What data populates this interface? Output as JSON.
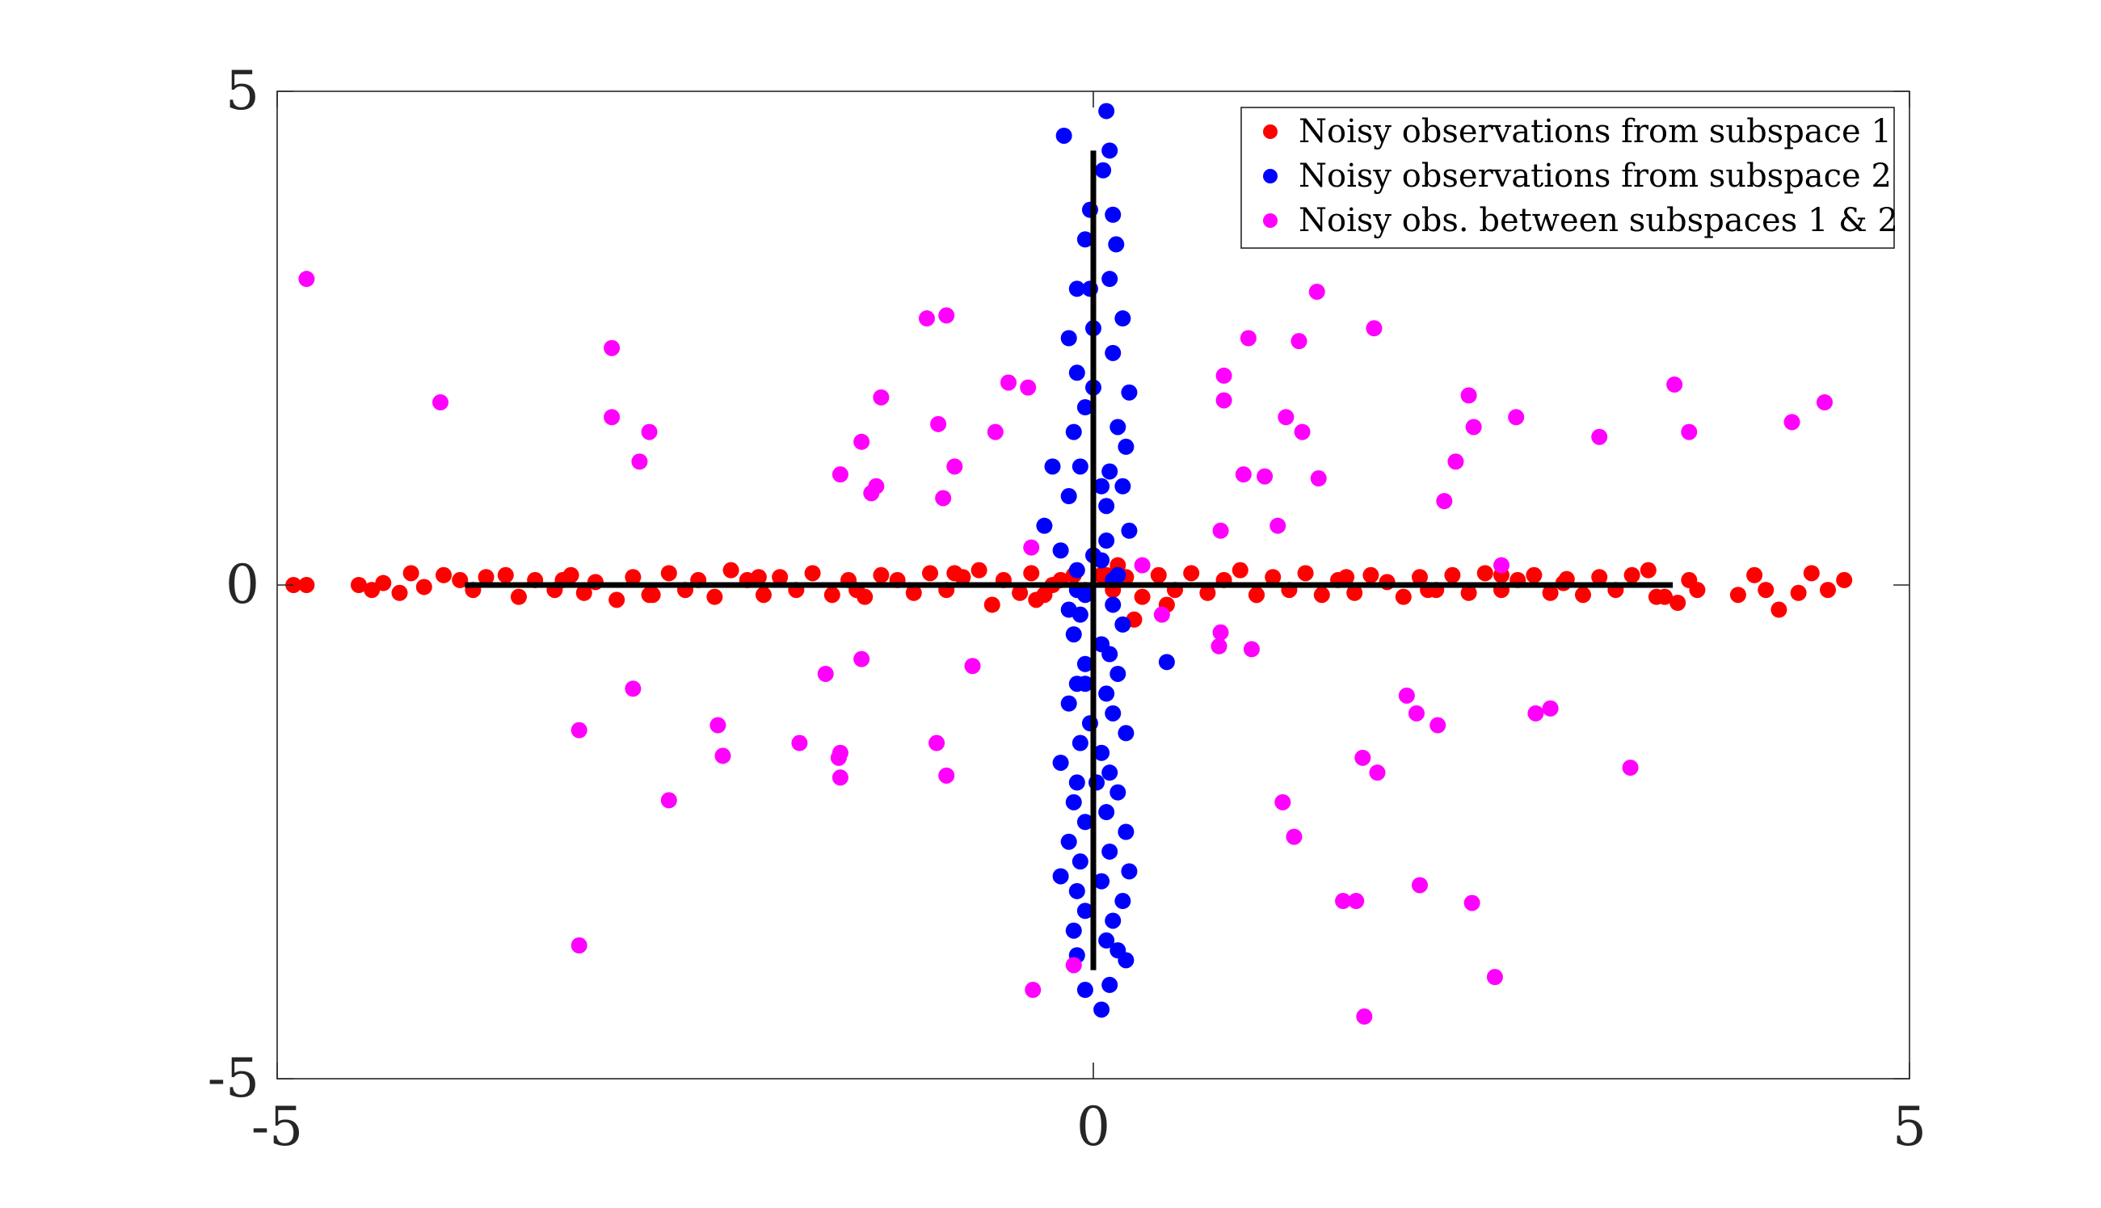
{
  "chart_data": {
    "type": "scatter",
    "title": "",
    "xlabel": "",
    "ylabel": "",
    "xlim": [
      -5,
      5
    ],
    "ylim": [
      -5,
      5
    ],
    "xticks": [
      -5,
      0,
      5
    ],
    "yticks": [
      -5,
      0,
      5
    ],
    "xtick_labels": [
      "-5",
      "0",
      "5"
    ],
    "ytick_labels": [
      "-5",
      "0",
      "5"
    ],
    "grid": false,
    "legend_position": "top-right",
    "colors": {
      "subspace1": "#ff0000",
      "subspace2": "#0000ff",
      "between": "#ff00ff",
      "lines": "#000000"
    },
    "lines": [
      {
        "x": [
          -3.85,
          3.55
        ],
        "y": [
          0,
          0
        ]
      },
      {
        "x": [
          0,
          0
        ],
        "y": [
          -3.9,
          4.4
        ]
      }
    ],
    "series": [
      {
        "name": "Noisy observations from subspace 1",
        "color": "#ff0000",
        "x": [
          -4.9,
          -4.82,
          -4.5,
          -4.42,
          -4.35,
          -4.25,
          -4.18,
          -4.1,
          -3.98,
          -3.88,
          -3.8,
          -3.72,
          -3.6,
          -3.52,
          -3.42,
          -3.3,
          -3.2,
          -3.12,
          -3.05,
          -2.92,
          -2.82,
          -2.72,
          -2.6,
          -2.5,
          -2.42,
          -2.32,
          -2.22,
          -2.12,
          -2.02,
          -1.92,
          -1.82,
          -1.72,
          -1.6,
          -1.5,
          -1.4,
          -1.3,
          -1.2,
          -1.1,
          -1.0,
          -0.9,
          -0.8,
          -0.7,
          -0.62,
          -0.55,
          -0.45,
          -0.38,
          -0.3,
          -0.2,
          -0.12,
          -0.05,
          0.05,
          0.12,
          0.2,
          0.3,
          0.4,
          0.5,
          0.6,
          0.7,
          0.8,
          0.9,
          1.0,
          1.1,
          1.2,
          1.3,
          1.4,
          1.5,
          1.6,
          1.7,
          1.8,
          1.9,
          2.0,
          2.1,
          2.2,
          2.3,
          2.4,
          2.5,
          2.6,
          2.7,
          2.8,
          2.9,
          3.0,
          3.1,
          3.2,
          3.3,
          3.4,
          3.5,
          3.58,
          3.65,
          3.7,
          3.95,
          4.05,
          4.12,
          4.2,
          4.32,
          4.4,
          4.5,
          4.6,
          3.45,
          2.88,
          2.5,
          2.05,
          1.55,
          1.0,
          0.45,
          0.25,
          -0.35,
          -0.85,
          -1.45,
          -2.05,
          -2.7,
          -3.25,
          -0.25,
          0.15,
          0.08
        ],
        "y": [
          0.0,
          0.0,
          0.0,
          -0.05,
          0.02,
          -0.08,
          0.12,
          -0.02,
          0.1,
          0.05,
          -0.05,
          0.08,
          0.1,
          -0.12,
          0.05,
          -0.05,
          0.1,
          -0.08,
          0.03,
          -0.15,
          0.08,
          -0.1,
          0.12,
          -0.05,
          0.05,
          -0.12,
          0.15,
          0.05,
          -0.1,
          0.08,
          -0.05,
          0.12,
          -0.1,
          0.05,
          -0.12,
          0.1,
          0.05,
          -0.08,
          0.12,
          -0.05,
          0.08,
          0.15,
          -0.2,
          0.05,
          -0.08,
          0.12,
          -0.1,
          0.05,
          0.1,
          -0.05,
          0.1,
          -0.05,
          0.08,
          -0.12,
          0.1,
          -0.05,
          0.12,
          -0.08,
          0.05,
          0.15,
          -0.1,
          0.08,
          -0.05,
          0.12,
          -0.1,
          0.05,
          -0.08,
          0.1,
          0.03,
          -0.12,
          0.08,
          -0.05,
          0.1,
          -0.08,
          0.12,
          -0.05,
          0.05,
          0.1,
          -0.08,
          0.06,
          -0.1,
          0.08,
          -0.05,
          0.1,
          0.15,
          -0.12,
          -0.18,
          0.05,
          -0.05,
          -0.1,
          0.1,
          -0.05,
          -0.25,
          -0.08,
          0.12,
          -0.05,
          0.05,
          -0.12,
          0.02,
          0.1,
          -0.05,
          0.08,
          -0.1,
          -0.2,
          -0.35,
          -0.15,
          0.12,
          -0.05,
          0.08,
          -0.1,
          0.05,
          0.0,
          0.2,
          0.1
        ]
      },
      {
        "name": "Noisy observations from subspace 2",
        "color": "#0000ff",
        "x": [
          0.08,
          -0.18,
          0.1,
          0.06,
          -0.02,
          0.12,
          -0.05,
          0.14,
          0.1,
          -0.1,
          0.18,
          0.0,
          -0.15,
          0.12,
          -0.1,
          0.22,
          -0.05,
          0.15,
          -0.12,
          0.2,
          -0.08,
          0.1,
          -0.25,
          0.18,
          -0.15,
          0.08,
          -0.3,
          0.22,
          -0.2,
          0.05,
          -0.1,
          0.15,
          -0.05,
          0.12,
          -0.08,
          0.18,
          -0.12,
          0.05,
          0.1,
          -0.05,
          0.15,
          -0.1,
          0.08,
          -0.15,
          0.12,
          -0.02,
          0.2,
          -0.08,
          0.05,
          -0.2,
          0.1,
          0.45,
          -0.1,
          0.15,
          -0.12,
          0.08,
          -0.05,
          0.2,
          -0.15,
          0.1,
          -0.08,
          0.22,
          -0.2,
          0.05,
          -0.1,
          0.18,
          -0.05,
          0.12,
          -0.12,
          0.08,
          0.15,
          -0.1,
          0.2,
          0.1,
          -0.05,
          0.05,
          -0.1,
          0.12,
          0.0,
          -0.15,
          0.08,
          0.0,
          0.05,
          -0.05,
          0.02,
          -0.02
        ],
        "y": [
          4.8,
          4.55,
          4.4,
          4.2,
          3.8,
          3.75,
          3.5,
          3.45,
          3.1,
          3.0,
          2.7,
          2.6,
          2.5,
          2.35,
          2.15,
          1.95,
          1.8,
          1.6,
          1.55,
          1.4,
          1.2,
          1.15,
          1.2,
          1.0,
          0.9,
          0.8,
          0.6,
          0.55,
          0.35,
          0.25,
          0.15,
          0.1,
          -0.1,
          -0.2,
          -0.3,
          -0.4,
          -0.5,
          -0.6,
          -0.7,
          -0.8,
          -0.9,
          -1.0,
          -1.1,
          -1.2,
          -1.3,
          -1.4,
          -1.5,
          -1.6,
          -1.7,
          -1.8,
          -1.9,
          -0.78,
          -2.0,
          -2.1,
          -2.2,
          -2.3,
          -2.4,
          -2.5,
          -2.6,
          -2.7,
          -2.8,
          -2.9,
          -2.95,
          -3.0,
          -3.1,
          -3.2,
          -3.3,
          -3.4,
          -3.5,
          -3.6,
          -3.7,
          -3.75,
          -3.8,
          -4.05,
          -4.1,
          -4.3,
          -0.05,
          0.05,
          0.3,
          -0.25,
          0.45,
          2.0,
          1.0,
          -1.0,
          -2.0,
          3.0
        ]
      },
      {
        "name": "Noisy obs. between subspaces 1 & 2",
        "color": "#ff00ff",
        "x": [
          -4.82,
          -4.0,
          -2.95,
          -2.95,
          -2.78,
          -2.72,
          -3.15,
          -2.82,
          -2.3,
          -2.27,
          -2.6,
          -3.15,
          -1.42,
          -1.64,
          -1.8,
          -0.96,
          -1.55,
          -0.9,
          -0.74,
          -0.9,
          -1.02,
          -0.95,
          -0.52,
          -0.4,
          -0.6,
          -1.3,
          -1.42,
          -1.33,
          -0.92,
          -0.85,
          -1.55,
          -1.36,
          -1.56,
          -1.55,
          -0.37,
          -0.12,
          -0.38,
          0.3,
          0.42,
          1.37,
          0.95,
          0.8,
          1.26,
          1.72,
          0.8,
          1.18,
          2.3,
          1.28,
          0.92,
          1.05,
          1.38,
          2.15,
          2.59,
          3.1,
          2.33,
          2.22,
          0.78,
          1.13,
          2.5,
          3.56,
          3.65,
          4.28,
          4.48,
          0.97,
          0.78,
          0.77,
          1.92,
          1.98,
          2.11,
          2.71,
          2.8,
          3.29,
          1.65,
          1.74,
          1.16,
          1.23,
          1.53,
          1.61,
          2.0,
          2.32,
          2.46,
          1.66
        ],
        "y": [
          3.1,
          1.85,
          2.4,
          1.7,
          1.25,
          1.55,
          -1.47,
          -1.05,
          -1.42,
          -1.73,
          -2.18,
          -3.65,
          -0.75,
          -0.9,
          -1.6,
          -1.6,
          -1.7,
          -1.93,
          -0.82,
          2.73,
          2.7,
          1.63,
          2.05,
          2.0,
          1.55,
          1.9,
          1.45,
          1.0,
          0.88,
          1.2,
          1.12,
          0.93,
          -1.75,
          -1.95,
          -4.1,
          -3.85,
          0.38,
          0.2,
          -0.3,
          2.97,
          2.5,
          2.12,
          2.47,
          2.6,
          1.87,
          1.7,
          1.92,
          1.55,
          1.12,
          1.1,
          1.08,
          0.85,
          1.7,
          1.5,
          1.6,
          1.25,
          0.55,
          0.6,
          0.2,
          2.03,
          1.55,
          1.65,
          1.85,
          -0.65,
          -0.48,
          -0.62,
          -1.12,
          -1.3,
          -1.42,
          -1.3,
          -1.25,
          -1.85,
          -1.75,
          -1.9,
          -2.2,
          -2.55,
          -3.2,
          -3.2,
          -3.04,
          -3.22,
          -3.97,
          -4.37
        ]
      }
    ]
  }
}
